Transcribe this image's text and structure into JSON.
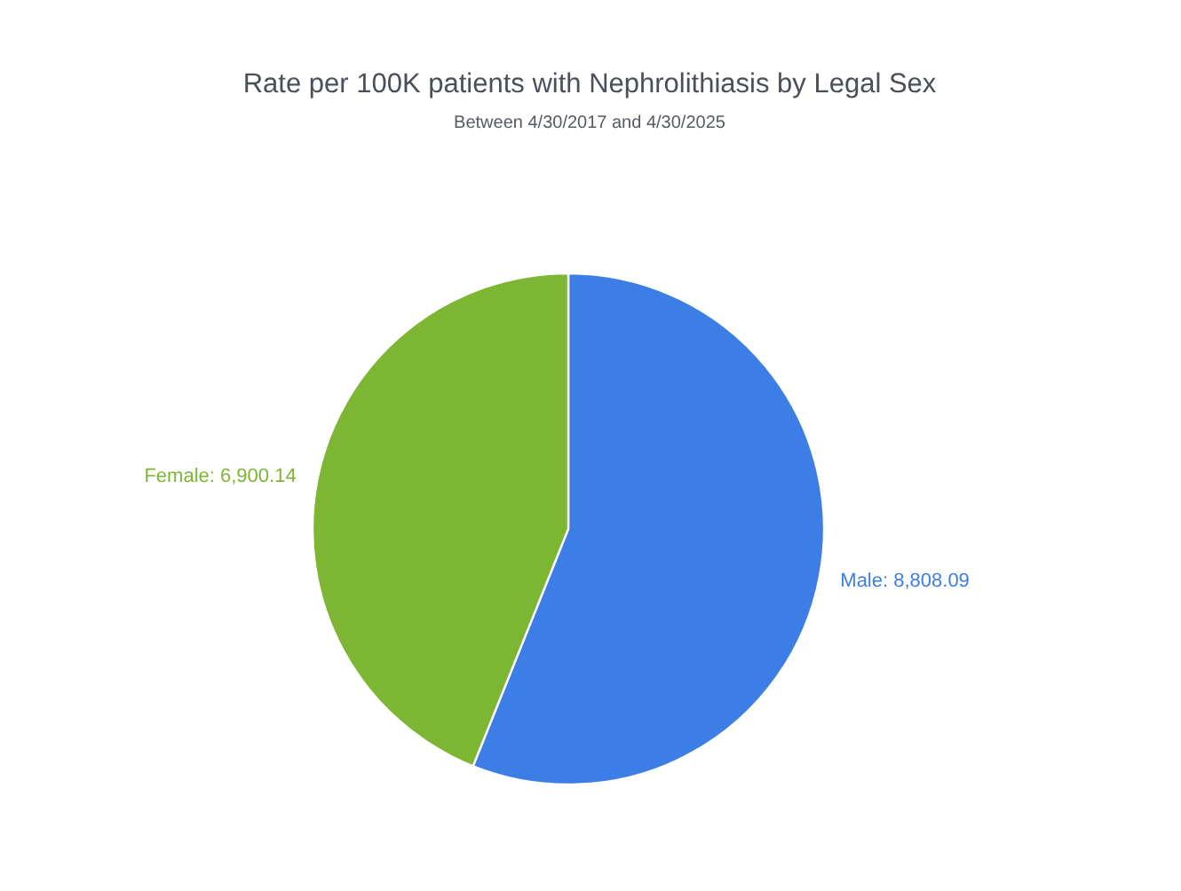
{
  "chart_data": {
    "type": "pie",
    "title": "Rate per 100K patients with Nephrolithiasis by Legal Sex",
    "subtitle": "Between 4/30/2017 and 4/30/2025",
    "categories": [
      "Male",
      "Female"
    ],
    "values": [
      8808.09,
      6900.14
    ],
    "colors": [
      "#3d7ee6",
      "#7db633"
    ],
    "value_labels": [
      "8,808.09",
      "6,900.14"
    ],
    "legend": false
  }
}
